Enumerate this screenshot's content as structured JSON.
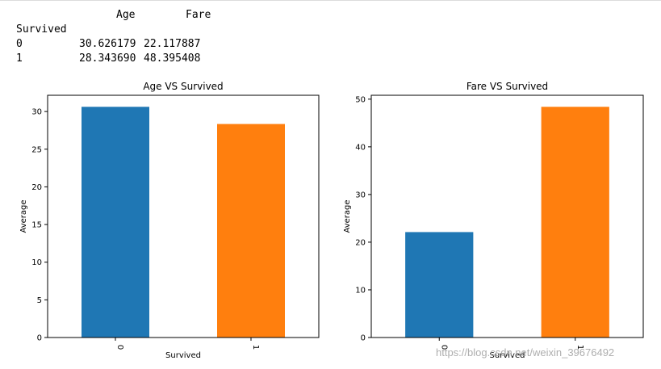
{
  "dataframe": {
    "header_cols": [
      "Age",
      "Fare"
    ],
    "index_name": "Survived",
    "rows": [
      {
        "index": "0",
        "age": "30.626179",
        "fare": "22.117887"
      },
      {
        "index": "1",
        "age": "28.343690",
        "fare": "48.395408"
      }
    ]
  },
  "chart_data": [
    {
      "type": "bar",
      "title": "Age VS Survived",
      "xlabel": "Survived",
      "ylabel": "Average",
      "categories": [
        "0",
        "1"
      ],
      "values": [
        30.626179,
        28.34369
      ],
      "colors": [
        "#1f77b4",
        "#ff7f0e"
      ],
      "ylim": [
        0,
        32.157
      ],
      "yticks": [
        0,
        5,
        10,
        15,
        20,
        25,
        30
      ],
      "grid": false
    },
    {
      "type": "bar",
      "title": "Fare VS Survived",
      "xlabel": "Survived",
      "ylabel": "Average",
      "categories": [
        "0",
        "1"
      ],
      "values": [
        22.117887,
        48.395408
      ],
      "colors": [
        "#1f77b4",
        "#ff7f0e"
      ],
      "ylim": [
        0,
        50.815
      ],
      "yticks": [
        0,
        10,
        20,
        30,
        40,
        50
      ],
      "grid": false
    }
  ],
  "watermark": "https://blog.csdn.net/weixin_39676492"
}
